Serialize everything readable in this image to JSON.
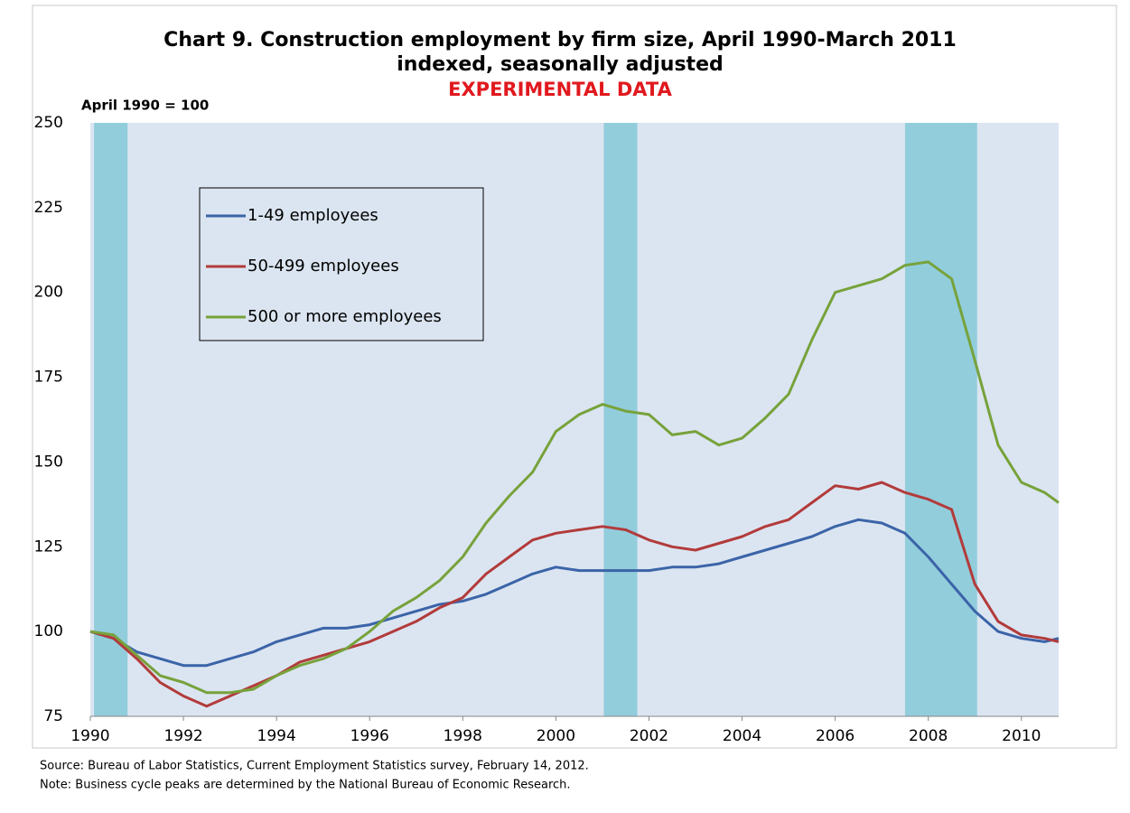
{
  "chart_data": {
    "type": "line",
    "title": "Chart 9.  Construction employment by firm size, April 1990-March 2011",
    "subtitle": "indexed, seasonally adjusted",
    "annotation": "EXPERIMENTAL DATA",
    "ylabel": "April 1990 = 100",
    "source": "Source: Bureau of Labor Statistics, Current Employment Statistics survey, February 14, 2012.",
    "note": "Note: Business cycle peaks are determined by the National Bureau of Economic Research.",
    "x": [
      1990,
      1990.5,
      1991,
      1991.5,
      1992,
      1992.5,
      1993,
      1993.5,
      1994,
      1994.5,
      1995,
      1995.5,
      1996,
      1996.5,
      1997,
      1997.5,
      1998,
      1998.5,
      1999,
      1999.5,
      2000,
      2000.5,
      2001,
      2001.5,
      2002,
      2002.5,
      2003,
      2003.5,
      2004,
      2004.5,
      2005,
      2005.5,
      2006,
      2006.5,
      2007,
      2007.5,
      2008,
      2008.5,
      2009,
      2009.5,
      2010,
      2010.5,
      2010.8
    ],
    "series": [
      {
        "name": "1-49 employees",
        "color": "#3b64a8",
        "values": [
          100,
          98,
          94,
          92,
          90,
          90,
          92,
          94,
          97,
          99,
          101,
          101,
          102,
          104,
          106,
          108,
          109,
          111,
          114,
          117,
          119,
          118,
          118,
          118,
          118,
          119,
          119,
          120,
          122,
          124,
          126,
          128,
          131,
          133,
          132,
          129,
          122,
          114,
          106,
          100,
          98,
          97,
          98
        ]
      },
      {
        "name": "50-499 employees",
        "color": "#b23b3b",
        "values": [
          100,
          98,
          92,
          85,
          81,
          78,
          81,
          84,
          87,
          91,
          93,
          95,
          97,
          100,
          103,
          107,
          110,
          117,
          122,
          127,
          129,
          130,
          131,
          130,
          127,
          125,
          124,
          126,
          128,
          131,
          133,
          138,
          143,
          142,
          144,
          141,
          139,
          136,
          114,
          103,
          99,
          98,
          97
        ]
      },
      {
        "name": "500 or more employees",
        "color": "#77a23b",
        "values": [
          100,
          99,
          93,
          87,
          85,
          82,
          82,
          83,
          87,
          90,
          92,
          95,
          100,
          106,
          110,
          115,
          122,
          132,
          140,
          147,
          159,
          164,
          167,
          165,
          164,
          158,
          159,
          155,
          157,
          163,
          170,
          186,
          200,
          202,
          204,
          208,
          209,
          204,
          180,
          155,
          144,
          141,
          138
        ]
      }
    ],
    "shaded_periods": [
      [
        1990.08,
        1990.8
      ],
      [
        2001.03,
        2001.75
      ],
      [
        2007.5,
        2009.05
      ]
    ],
    "xlim": [
      1990,
      2010.8
    ],
    "xticks": [
      1990,
      1992,
      1994,
      1996,
      1998,
      2000,
      2002,
      2004,
      2006,
      2008,
      2010
    ],
    "ylim": [
      75,
      250
    ],
    "yticks": [
      75,
      100,
      125,
      150,
      175,
      200,
      225,
      250
    ],
    "plot_background": "#dbe5f1",
    "shade_color": "#92cddc"
  }
}
